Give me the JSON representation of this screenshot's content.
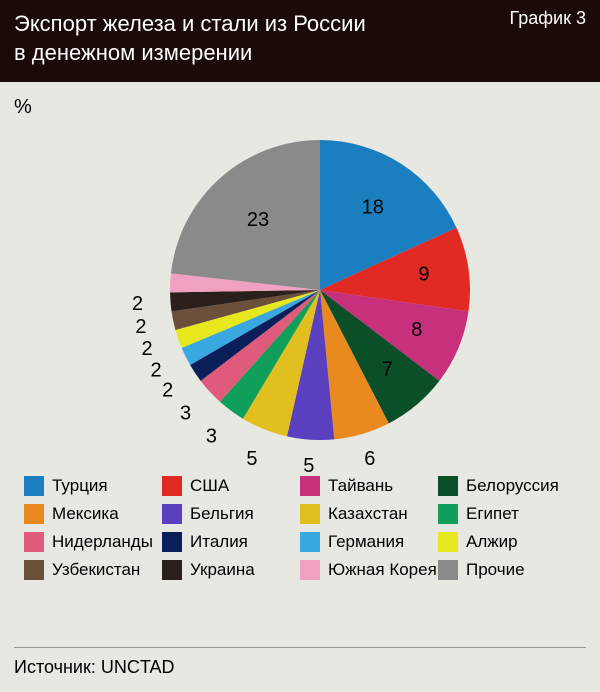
{
  "header": {
    "title_line1": "Экспорт железа и стали из России",
    "title_line2": "в денежном измерении",
    "chart_label": "График 3"
  },
  "y_unit": "%",
  "source": "Источник: UNCTAD",
  "chart": {
    "type": "pie",
    "background_color": "#e8e8e3",
    "diameter": 300,
    "label_fontsize": 20,
    "slices": [
      {
        "name": "Турция",
        "value": 18,
        "color": "#1b7fbf"
      },
      {
        "name": "США",
        "value": 9,
        "color": "#e22a25"
      },
      {
        "name": "Тайвань",
        "value": 8,
        "color": "#c7307c"
      },
      {
        "name": "Белоруссия",
        "value": 7,
        "color": "#0b4f28"
      },
      {
        "name": "Мексика",
        "value": 6,
        "color": "#e88a1f"
      },
      {
        "name": "Бельгия",
        "value": 5,
        "color": "#5a3fbf"
      },
      {
        "name": "Казахстан",
        "value": 5,
        "color": "#e0bf1f"
      },
      {
        "name": "Египет",
        "value": 3,
        "color": "#0f9f5a"
      },
      {
        "name": "Нидерланды",
        "value": 3,
        "color": "#e05a7c"
      },
      {
        "name": "Италия",
        "value": 2,
        "color": "#0a1f5a"
      },
      {
        "name": "Германия",
        "value": 2,
        "color": "#3aa8e0"
      },
      {
        "name": "Алжир",
        "value": 2,
        "color": "#e8e81f"
      },
      {
        "name": "Узбекистан",
        "value": 2,
        "color": "#6a4f3a"
      },
      {
        "name": "Украина",
        "value": 2,
        "color": "#2a1f1a"
      },
      {
        "name": "Южная Корея",
        "value": 2,
        "color": "#f0a0c0"
      },
      {
        "name": "Прочие",
        "value": 23,
        "color": "#8a8a8a"
      }
    ],
    "label_offsets": {
      "0": 0.65,
      "1": 0.7,
      "2": 0.7,
      "3": 0.7,
      "4": 1.18,
      "5": 1.18,
      "6": 1.22,
      "7": 1.22,
      "8": 1.22,
      "9": 1.22,
      "10": 1.22,
      "11": 1.22,
      "12": 1.22,
      "13": 1.22,
      "14": 1.22,
      "15": 0.62
    },
    "hidden_labels": [
      14
    ]
  },
  "legend": {
    "columns": 4,
    "items": [
      "Турция",
      "США",
      "Тайвань",
      "Белоруссия",
      "Мексика",
      "Бельгия",
      "Казахстан",
      "Египет",
      "Нидерланды",
      "Италия",
      "Германия",
      "Алжир",
      "Узбекистан",
      "Украина",
      "Южная Корея",
      "Прочие"
    ]
  }
}
